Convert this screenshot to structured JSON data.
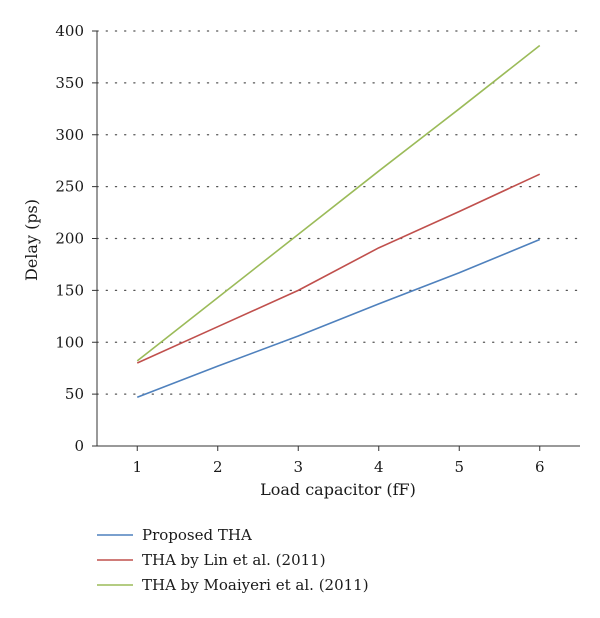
{
  "chart_data": {
    "type": "line",
    "xlabel": "Load capacitor (fF)",
    "ylabel": "Delay (ps)",
    "x": [
      1,
      2,
      3,
      4,
      5,
      6
    ],
    "xlim": [
      0.5,
      6.5
    ],
    "ylim": [
      0,
      400
    ],
    "xticks": [
      "1",
      "2",
      "3",
      "4",
      "5",
      "6"
    ],
    "yticks": [
      "0",
      "50",
      "100",
      "150",
      "200",
      "250",
      "300",
      "350",
      "400"
    ],
    "grid": "horizontal dotted",
    "legend_position": "bottom",
    "series": [
      {
        "name": "Proposed THA",
        "color": "#4f81bd",
        "values": [
          47,
          77,
          106,
          137,
          167,
          199
        ]
      },
      {
        "name": "THA by Lin et al. (2011)",
        "color": "#c0504d",
        "values": [
          80,
          115,
          150,
          191,
          226,
          262
        ]
      },
      {
        "name": "THA by Moaiyeri et al. (2011)",
        "color": "#9bbb59",
        "values": [
          82,
          143,
          204,
          265,
          325,
          386
        ]
      }
    ]
  }
}
